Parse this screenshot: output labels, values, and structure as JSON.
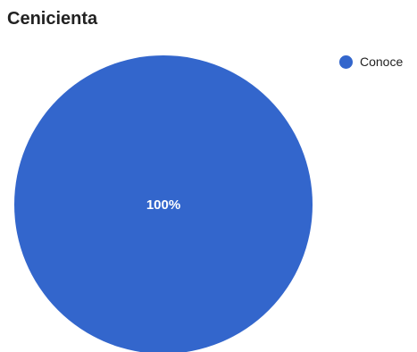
{
  "chart_data": {
    "type": "pie",
    "title": "Cenicienta",
    "slices": [
      {
        "label": "Conoce",
        "value": 100,
        "display": "100%",
        "color": "#3366cc"
      }
    ],
    "legend_position": "right"
  }
}
